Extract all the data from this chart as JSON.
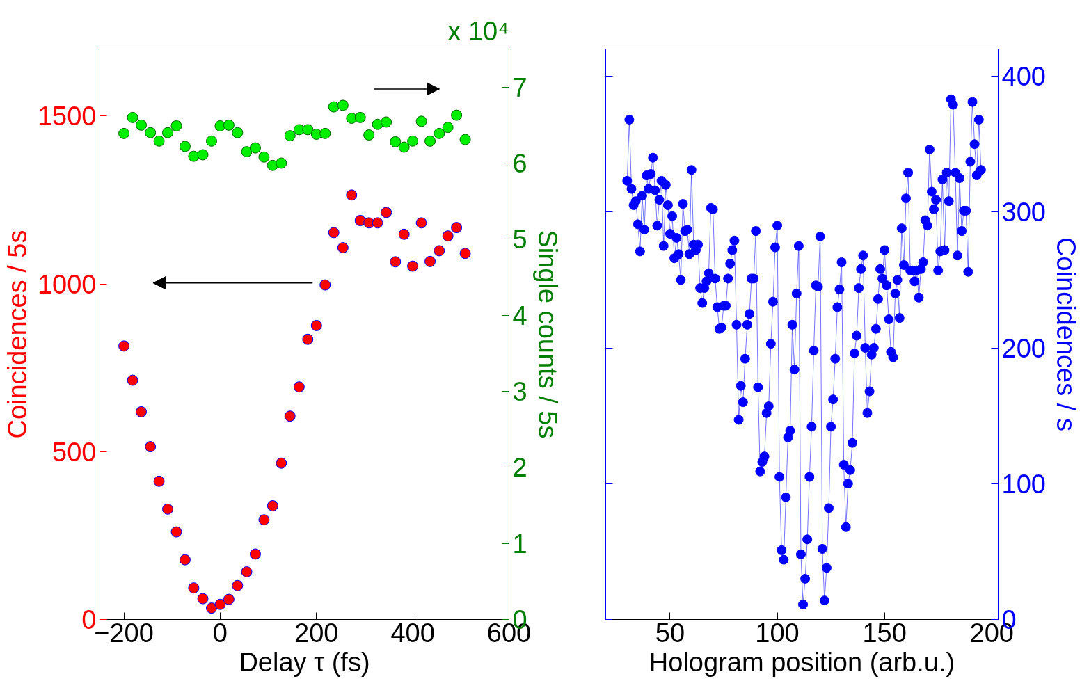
{
  "chart_data": [
    {
      "type": "scatter",
      "marker": "circle",
      "xlabel": "Delay τ (fs)",
      "ylabel": "Coincidences / 5s",
      "y2label": "Single counts / 5s",
      "x": [
        -200,
        -182,
        -164,
        -145,
        -127,
        -109,
        -91,
        -73,
        -55,
        -36,
        -18,
        0,
        18,
        36,
        55,
        73,
        91,
        109,
        127,
        145,
        164,
        182,
        200,
        218,
        236,
        255,
        273,
        291,
        309,
        327,
        345,
        364,
        382,
        400,
        418,
        436,
        455,
        473,
        491,
        509
      ],
      "xlim": [
        -250,
        600
      ],
      "xticks": [
        {
          "value": -200,
          "label": "−200"
        },
        0,
        200,
        400,
        600
      ],
      "ylim": [
        0,
        1700
      ],
      "yticks": [
        0,
        500,
        1000,
        1500
      ],
      "y2lim": [
        0,
        7.5
      ],
      "y2ticks": [
        0,
        1,
        2,
        3,
        4,
        5,
        6,
        7
      ],
      "series": [
        {
          "color": "#ff0000",
          "values": [
            815,
            713,
            619,
            515,
            412,
            329,
            261,
            178,
            94,
            62,
            34,
            45,
            60,
            101,
            142,
            195,
            297,
            339,
            466,
            606,
            693,
            835,
            876,
            997,
            1153,
            1108,
            1265,
            1189,
            1182,
            1182,
            1213,
            1066,
            1148,
            1053,
            1182,
            1067,
            1099,
            1143,
            1168,
            1091
          ]
        },
        {
          "color": "#00ee00",
          "axis": "y2",
          "values": [
            6.39,
            6.6,
            6.5,
            6.4,
            6.29,
            6.4,
            6.49,
            6.22,
            6.09,
            6.11,
            6.29,
            6.49,
            6.5,
            6.4,
            6.15,
            6.2,
            6.08,
            5.97,
            6.0,
            6.36,
            6.44,
            6.44,
            6.38,
            6.39,
            6.74,
            6.76,
            6.59,
            6.6,
            6.37,
            6.51,
            6.54,
            6.28,
            6.21,
            6.29,
            6.55,
            6.29,
            6.39,
            6.47,
            6.63,
            6.31
          ]
        }
      ],
      "annotations": [
        "x 10⁴"
      ]
    },
    {
      "type": "line",
      "marker": "circle",
      "xlabel": "Hologram position (arb.u.)",
      "y2label": "Coincidences / s",
      "x": [
        30,
        31,
        32,
        33,
        34,
        35,
        36,
        37,
        38,
        39,
        40,
        41,
        42,
        43,
        44,
        45,
        46,
        47,
        48,
        49,
        50,
        51,
        52,
        53,
        54,
        55,
        56,
        57,
        58,
        59,
        60,
        61,
        62,
        63,
        64,
        65,
        66,
        67,
        68,
        69,
        70,
        71,
        72,
        73,
        74,
        75,
        76,
        77,
        78,
        79,
        80,
        81,
        82,
        83,
        84,
        85,
        86,
        87,
        88,
        89,
        90,
        91,
        92,
        93,
        94,
        95,
        96,
        97,
        98,
        99,
        100,
        101,
        102,
        103,
        104,
        105,
        106,
        107,
        108,
        109,
        110,
        111,
        112,
        113,
        114,
        115,
        116,
        117,
        118,
        119,
        120,
        121,
        122,
        123,
        124,
        125,
        126,
        127,
        128,
        129,
        130,
        131,
        132,
        133,
        134,
        135,
        136,
        137,
        138,
        139,
        140,
        141,
        142,
        143,
        144,
        145,
        146,
        147,
        148,
        149,
        150,
        151,
        152,
        153,
        154,
        155,
        156,
        157,
        158,
        159,
        160,
        161,
        162,
        163,
        164,
        165,
        166,
        167,
        168,
        169,
        170,
        171,
        172,
        173,
        174,
        175,
        176,
        177,
        178,
        179,
        180,
        181,
        182,
        183,
        184,
        185,
        186,
        187,
        188,
        189,
        190,
        191,
        192,
        193,
        194,
        195
      ],
      "xlim": [
        20,
        203
      ],
      "xticks": [
        50,
        100,
        150,
        200
      ],
      "y2lim": [
        0,
        420
      ],
      "y2ticks": [
        0,
        100,
        200,
        300,
        400
      ],
      "series": [
        {
          "color": "#0000ff",
          "axis": "y2",
          "values": [
            323,
            368,
            317,
            305,
            308,
            291,
            271,
            312,
            287,
            327,
            317,
            328,
            340,
            316,
            290,
            309,
            323,
            275,
            320,
            305,
            284,
            297,
            266,
            281,
            269,
            250,
            306,
            286,
            287,
            269,
            331,
            276,
            272,
            276,
            244,
            233,
            244,
            249,
            255,
            303,
            302,
            251,
            230,
            214,
            215,
            231,
            231,
            251,
            262,
            272,
            279,
            217,
            147,
            172,
            160,
            192,
            217,
            225,
            251,
            251,
            286,
            171,
            109,
            116,
            120,
            152,
            157,
            203,
            234,
            274,
            290,
            105,
            51,
            44,
            90,
            134,
            139,
            217,
            184,
            240,
            275,
            48,
            11,
            30,
            59,
            105,
            142,
            198,
            246,
            245,
            282,
            52,
            14,
            38,
            82,
            142,
            162,
            192,
            230,
            243,
            263,
            114,
            68,
            100,
            110,
            130,
            196,
            209,
            244,
            258,
            268,
            200,
            152,
            168,
            195,
            200,
            214,
            236,
            258,
            251,
            272,
            246,
            221,
            197,
            193,
            240,
            250,
            222,
            288,
            261,
            310,
            329,
            257,
            257,
            249,
            257,
            237,
            258,
            263,
            294,
            290,
            346,
            315,
            302,
            309,
            257,
            271,
            324,
            272,
            329,
            308,
            383,
            379,
            329,
            268,
            325,
            286,
            301,
            301,
            256,
            337,
            381,
            350,
            327,
            368,
            331
          ]
        }
      ]
    }
  ]
}
